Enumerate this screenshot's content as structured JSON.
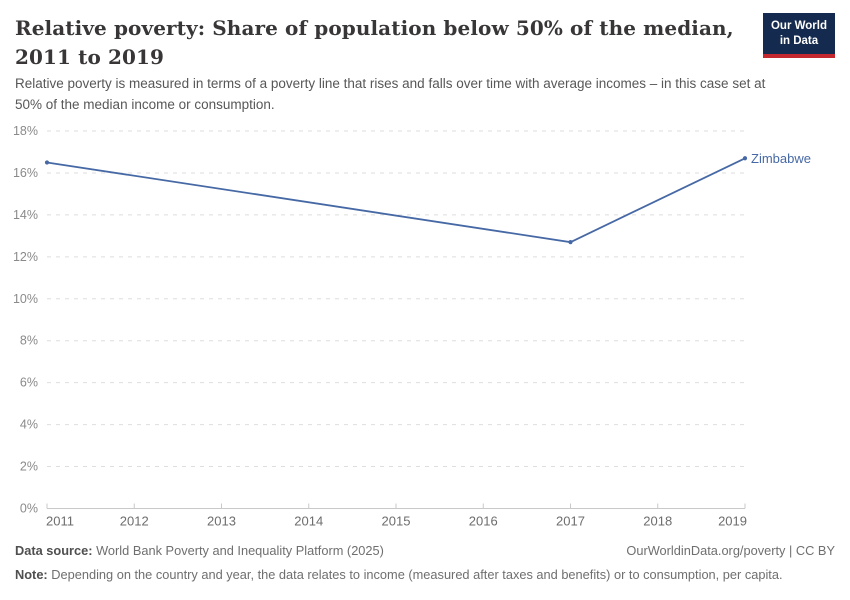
{
  "header": {
    "title": "Relative poverty: Share of population below 50% of the median, 2011 to 2019",
    "subtitle": "Relative poverty is measured in terms of a poverty line that rises and falls over time with average incomes – in this case set at 50% of the median income or consumption.",
    "logo": {
      "line1": "Our World",
      "line2": "in Data"
    }
  },
  "chart_data": {
    "type": "line",
    "title": "Relative poverty: Share of population below 50% of the median, 2011 to 2019",
    "xlabel": "",
    "ylabel": "",
    "xlim": [
      2011,
      2019
    ],
    "ylim": [
      0,
      18
    ],
    "x_ticks": [
      2011,
      2012,
      2013,
      2014,
      2015,
      2016,
      2017,
      2018,
      2019
    ],
    "y_tick_values": [
      0,
      2,
      4,
      6,
      8,
      10,
      12,
      14,
      16,
      18
    ],
    "y_tick_labels": [
      "0%",
      "2%",
      "4%",
      "6%",
      "8%",
      "10%",
      "12%",
      "14%",
      "16%",
      "18%"
    ],
    "grid": "horizontal-dashed",
    "legend_position": "end-of-line-label",
    "series": [
      {
        "name": "Zimbabwe",
        "color": "#4669a5",
        "x": [
          2011,
          2017,
          2019
        ],
        "values": [
          16.5,
          12.7,
          16.7
        ]
      }
    ]
  },
  "footer": {
    "datasource_label": "Data source:",
    "datasource_text": " World Bank Poverty and Inequality Platform (2025)",
    "link_text": "OurWorldinData.org/poverty | CC BY",
    "note_label": "Note:",
    "note_text": " Depending on the country and year, the data relates to income (measured after taxes and benefits) or to consumption, per capita."
  },
  "colors": {
    "series_blue": "#4669a5",
    "logo_background": "#142a4e",
    "logo_bar_red": "#c4272e",
    "gridline": "#dedede",
    "axis_line": "#c9c9c9",
    "title_text": "#383636"
  }
}
